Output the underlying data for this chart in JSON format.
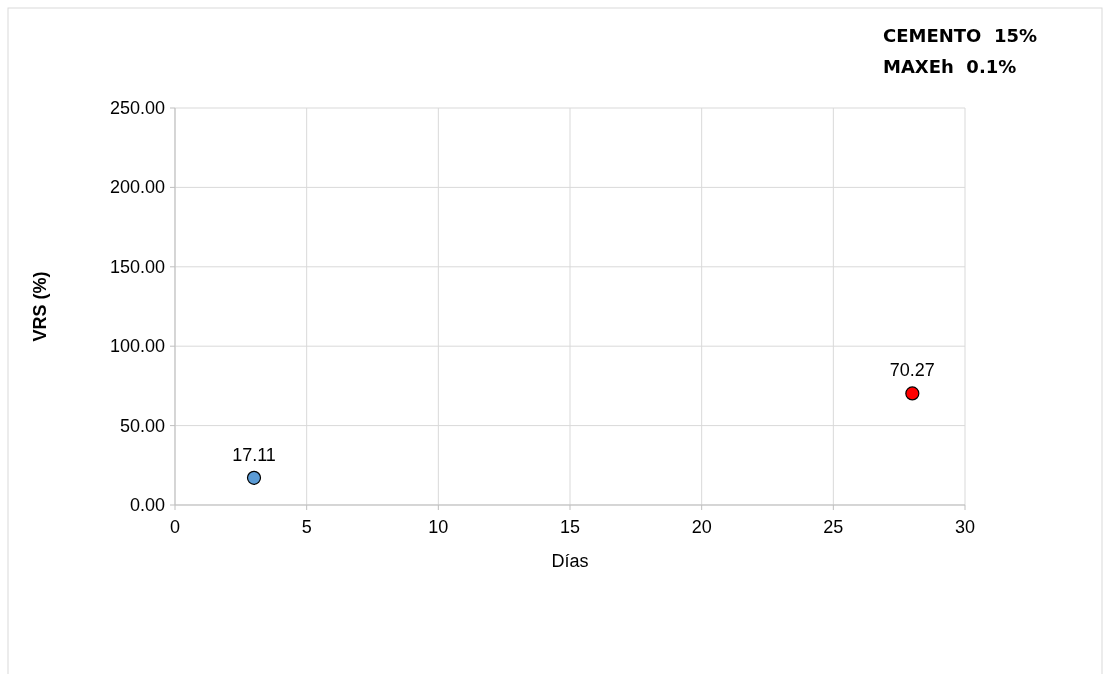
{
  "chart_data": {
    "type": "scatter",
    "xlabel": "Días",
    "ylabel": "VRS (%)",
    "annotations": [
      "CEMENTO  15%",
      "MAXEh  0.1%"
    ],
    "x": [
      3,
      28
    ],
    "values": [
      17.11,
      70.27
    ],
    "colors": [
      "#5b9bd5",
      "#ff0000"
    ],
    "data_labels": true,
    "marker": "circle",
    "grid": true,
    "xlim": [
      0,
      30
    ],
    "xticks": [
      0,
      5,
      10,
      15,
      20,
      25,
      30
    ],
    "ylim": [
      0,
      250
    ],
    "yticks": [
      {
        "value": 0,
        "label": "0.00"
      },
      {
        "value": 50,
        "label": "50.00"
      },
      {
        "value": 100,
        "label": "100.00"
      },
      {
        "value": 150,
        "label": "150.00"
      },
      {
        "value": 200,
        "label": "200.00"
      },
      {
        "value": 250,
        "label": "250.00"
      }
    ]
  }
}
